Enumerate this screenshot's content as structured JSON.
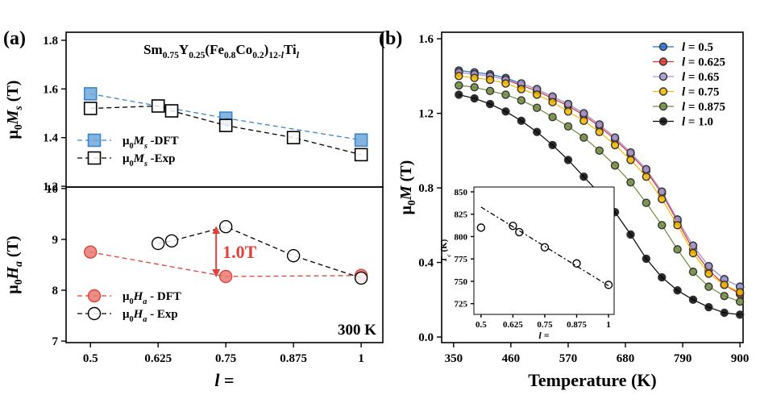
{
  "chart_data": [
    {
      "type": "line",
      "panel_label": "(a)",
      "title": [
        "Sm",
        "0.75",
        "Y",
        "0.25",
        "(Fe",
        "0.8",
        "Co",
        "0.2",
        ")",
        "12-",
        "l",
        "Ti",
        "l"
      ],
      "ylabel": [
        "μ",
        "0",
        "M",
        "s",
        " (T)"
      ],
      "xlim": [
        0.455,
        1.04
      ],
      "ylim": [
        1.197,
        1.833
      ],
      "yticks": [
        1.2,
        1.4,
        1.6,
        1.8
      ],
      "line_style": "dashed",
      "legend_loc": "lower left",
      "series": [
        {
          "name": [
            "μ",
            "0",
            "M",
            "s",
            " -DFT"
          ],
          "color": "#3d85c6",
          "fill": "#6fa8dc",
          "marker": "square",
          "x": [
            0.5,
            0.75,
            1
          ],
          "values": [
            1.58,
            1.48,
            1.39
          ]
        },
        {
          "name": [
            "μ",
            "0",
            "M",
            "s",
            " -Exp"
          ],
          "color": "#000000",
          "fill": "none",
          "marker": "square",
          "x": [
            0.5,
            0.625,
            0.65,
            0.75,
            0.875,
            1
          ],
          "values": [
            1.52,
            1.53,
            1.51,
            1.45,
            1.4,
            1.33
          ]
        }
      ]
    },
    {
      "type": "line",
      "ylabel": [
        "μ",
        "0",
        "H",
        "a",
        " (T)"
      ],
      "xlabel": [
        "l",
        " ="
      ],
      "xlim": [
        0.455,
        1.04
      ],
      "ylim": [
        6.97,
        10.03
      ],
      "xticks": [
        0.5,
        0.625,
        0.75,
        0.875,
        1
      ],
      "yticks": [
        7,
        8,
        9,
        10
      ],
      "line_style": "dashed",
      "legend_loc": "lower left",
      "annotation": "1.0T",
      "temperature": "300 K",
      "series": [
        {
          "name": [
            "μ",
            "0",
            "H",
            "a",
            " - DFT"
          ],
          "color": "#e0413a",
          "fill": "#e87a72",
          "marker": "circle",
          "x": [
            0.5,
            0.75,
            1
          ],
          "values": [
            8.75,
            8.27,
            8.29
          ]
        },
        {
          "name": [
            "μ",
            "0",
            "H",
            "a",
            " - Exp"
          ],
          "color": "#000000",
          "fill": "none",
          "marker": "circle",
          "x": [
            0.625,
            0.65,
            0.75,
            0.875,
            1
          ],
          "values": [
            8.92,
            8.97,
            9.25,
            8.68,
            8.24
          ]
        }
      ]
    },
    {
      "type": "line",
      "panel_label": "(b)",
      "ylabel": [
        "μ",
        "0",
        "M",
        " (T)"
      ],
      "xlabel": "Temperature (K)",
      "xlim": [
        327,
        906
      ],
      "ylim": [
        -0.03,
        1.635
      ],
      "xticks": [
        350,
        460,
        570,
        680,
        790,
        900
      ],
      "yticks": [
        {
          "value": 0,
          "label": "0.0"
        },
        0.4,
        0.8,
        1.2,
        1.6
      ],
      "line_style": "solid",
      "legend_loc": "upper right",
      "x": [
        360,
        390,
        420,
        450,
        480,
        510,
        540,
        570,
        600,
        630,
        660,
        690,
        720,
        750,
        780,
        810,
        840,
        870,
        900
      ],
      "series": [
        {
          "name": [
            "l",
            " = 0.5"
          ],
          "color": "#1f6fd1",
          "values": [
            1.43,
            1.42,
            1.41,
            1.39,
            1.36,
            1.33,
            1.29,
            1.25,
            1.2,
            1.14,
            1.07,
            0.99,
            0.9,
            0.78,
            0.63,
            0.49,
            0.38,
            0.31,
            0.27
          ]
        },
        {
          "name": [
            "l",
            " = 0.625"
          ],
          "color": "#e0302d",
          "values": [
            1.42,
            1.41,
            1.4,
            1.38,
            1.35,
            1.32,
            1.28,
            1.24,
            1.19,
            1.13,
            1.06,
            0.98,
            0.89,
            0.77,
            0.62,
            0.47,
            0.36,
            0.28,
            0.23
          ]
        },
        {
          "name": [
            "l",
            " = 0.65"
          ],
          "color": "#a89ad0",
          "values": [
            1.42,
            1.41,
            1.4,
            1.38,
            1.36,
            1.33,
            1.29,
            1.25,
            1.2,
            1.14,
            1.07,
            0.99,
            0.9,
            0.78,
            0.63,
            0.49,
            0.38,
            0.31,
            0.27
          ]
        },
        {
          "name": [
            "l",
            " = 0.75"
          ],
          "color": "#f5b800",
          "values": [
            1.4,
            1.39,
            1.38,
            1.36,
            1.33,
            1.3,
            1.26,
            1.21,
            1.16,
            1.1,
            1.03,
            0.95,
            0.86,
            0.74,
            0.6,
            0.45,
            0.34,
            0.28,
            0.24
          ]
        },
        {
          "name": [
            "l",
            " = 0.875"
          ],
          "color": "#6e8a3a",
          "values": [
            1.35,
            1.34,
            1.32,
            1.3,
            1.27,
            1.23,
            1.18,
            1.13,
            1.07,
            1.0,
            0.92,
            0.83,
            0.72,
            0.6,
            0.47,
            0.35,
            0.27,
            0.22,
            0.19
          ]
        },
        {
          "name": [
            "l",
            " = 1.0"
          ],
          "color": "#000000",
          "values": [
            1.3,
            1.28,
            1.25,
            1.21,
            1.16,
            1.1,
            1.03,
            0.95,
            0.86,
            0.77,
            0.67,
            0.55,
            0.42,
            0.32,
            0.25,
            0.2,
            0.16,
            0.13,
            0.12
          ]
        }
      ]
    },
    {
      "type": "scatter",
      "ylabel": [
        "T",
        "c",
        " (K)"
      ],
      "xlabel": [
        "l",
        " ="
      ],
      "xlim": [
        0.472,
        1.022
      ],
      "ylim": [
        713,
        855.4
      ],
      "xticks": [
        0.5,
        0.625,
        0.75,
        0.875,
        1
      ],
      "yticks": [
        725,
        750,
        775,
        800,
        825,
        850
      ],
      "series": [
        {
          "color": "#000000",
          "x": [
            0.5,
            0.625,
            0.65,
            0.75,
            0.875,
            1
          ],
          "values": [
            810,
            812,
            805,
            788,
            770,
            746
          ]
        },
        {
          "color": "#000000",
          "line_style": "dashdot",
          "x": [
            0.5,
            1
          ],
          "values": [
            833,
            745
          ]
        }
      ]
    }
  ]
}
